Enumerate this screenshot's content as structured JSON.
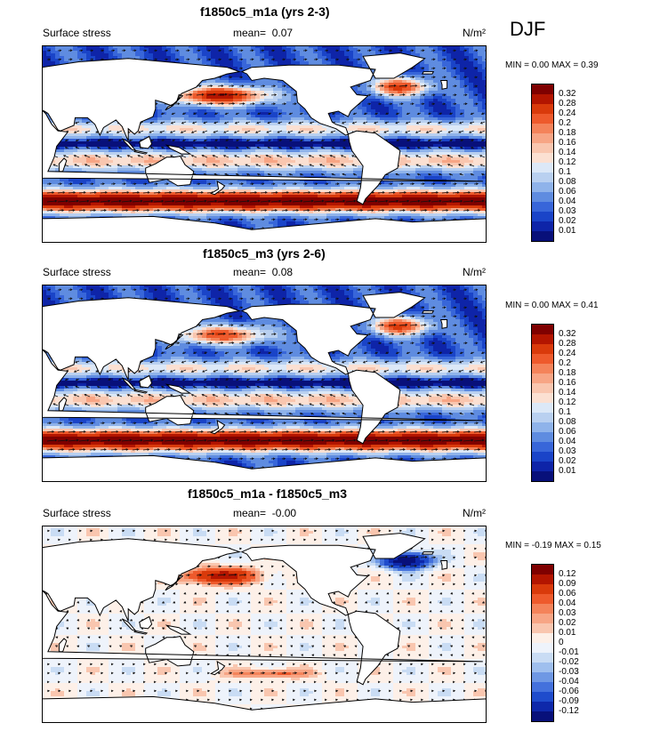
{
  "season": "DJF",
  "colors": {
    "land": "#ffffff",
    "coast": "#000000",
    "arrow": "#111111"
  },
  "panels": [
    {
      "title": "f1850c5_m1a (yrs 2-3)",
      "left_label": "Surface stress",
      "mean_label": "mean=",
      "mean_value": "0.07",
      "units": "N/m²",
      "min_label": "MIN =",
      "min_value": "0.00",
      "max_label": "MAX =",
      "max_value": "0.39",
      "levels": [
        "0.32",
        "0.28",
        "0.24",
        "0.2",
        "0.18",
        "0.16",
        "0.14",
        "0.12",
        "0.1",
        "0.08",
        "0.06",
        "0.04",
        "0.03",
        "0.02",
        "0.01"
      ],
      "palette": [
        "#7f0000",
        "#b31500",
        "#d93a0b",
        "#ee5a2c",
        "#f4835a",
        "#f7a585",
        "#f9c6af",
        "#fbe0d2",
        "#dce8f7",
        "#b9d0f0",
        "#8fb3ea",
        "#5f8ce0",
        "#3866d9",
        "#1a44c8",
        "#0e24a8",
        "#08107a"
      ],
      "field": "m1a"
    },
    {
      "title": "f1850c5_m3 (yrs 2-6)",
      "left_label": "Surface stress",
      "mean_label": "mean=",
      "mean_value": "0.08",
      "units": "N/m²",
      "min_label": "MIN =",
      "min_value": "0.00",
      "max_label": "MAX =",
      "max_value": "0.41",
      "levels": [
        "0.32",
        "0.28",
        "0.24",
        "0.2",
        "0.18",
        "0.16",
        "0.14",
        "0.12",
        "0.1",
        "0.08",
        "0.06",
        "0.04",
        "0.03",
        "0.02",
        "0.01"
      ],
      "palette": [
        "#7f0000",
        "#b31500",
        "#d93a0b",
        "#ee5a2c",
        "#f4835a",
        "#f7a585",
        "#f9c6af",
        "#fbe0d2",
        "#dce8f7",
        "#b9d0f0",
        "#8fb3ea",
        "#5f8ce0",
        "#3866d9",
        "#1a44c8",
        "#0e24a8",
        "#08107a"
      ],
      "field": "m3"
    },
    {
      "title": "f1850c5_m1a - f1850c5_m3",
      "left_label": "Surface stress",
      "mean_label": "mean=",
      "mean_value": "-0.00",
      "units": "N/m²",
      "min_label": "MIN =",
      "min_value": "-0.19",
      "max_label": "MAX =",
      "max_value": "0.15",
      "levels": [
        "0.12",
        "0.09",
        "0.06",
        "0.04",
        "0.03",
        "0.02",
        "0.01",
        "0",
        "-0.01",
        "-0.02",
        "-0.03",
        "-0.04",
        "-0.06",
        "-0.09",
        "-0.12"
      ],
      "palette": [
        "#7f0000",
        "#b31500",
        "#d93a0b",
        "#ee5a2c",
        "#f4835a",
        "#f7a585",
        "#f9c6af",
        "#fdf0e8",
        "#eef3fb",
        "#c9dcf4",
        "#9fbfee",
        "#6f98e4",
        "#4471dc",
        "#1f4ccc",
        "#0e28aa",
        "#08107a"
      ],
      "field": "diff"
    }
  ]
}
